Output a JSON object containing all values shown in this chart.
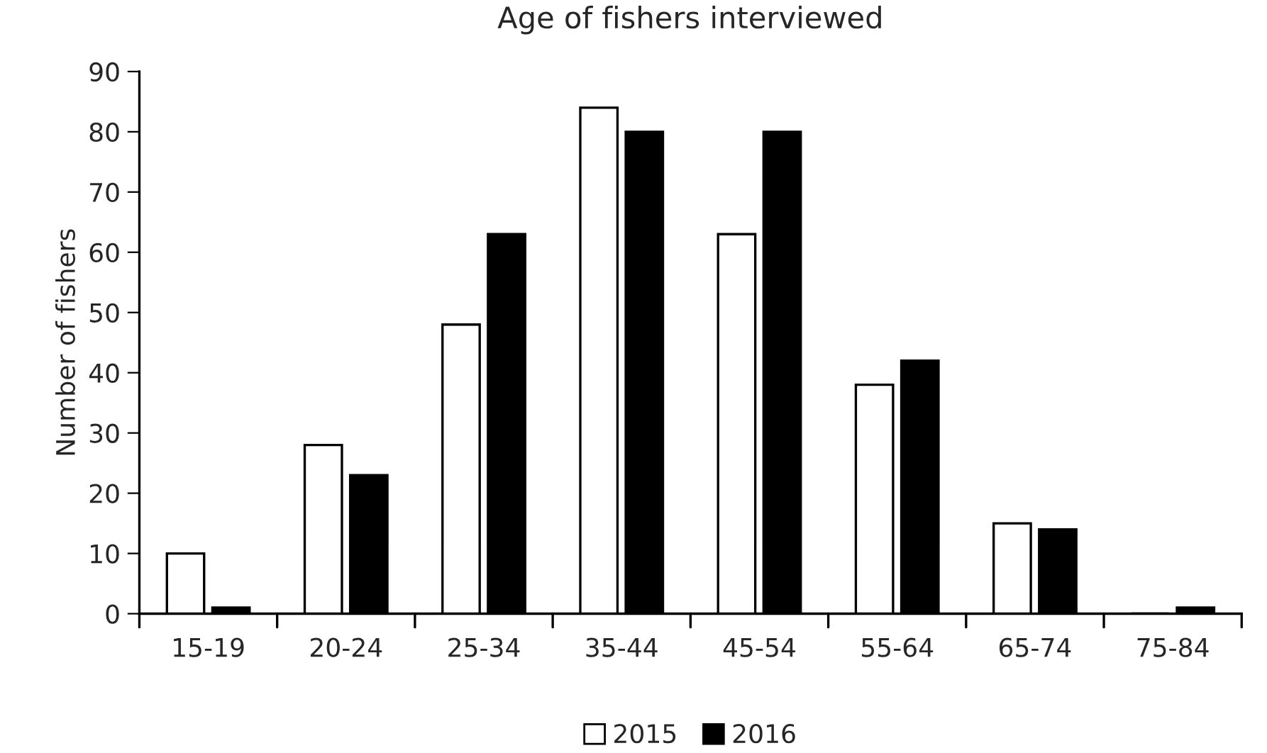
{
  "chart_data": {
    "type": "bar",
    "title": "Age of fishers interviewed",
    "ylabel": "Number of fishers",
    "categories": [
      "15-19",
      "20-24",
      "25-34",
      "35-44",
      "45-54",
      "55-64",
      "65-74",
      "75-84"
    ],
    "series": [
      {
        "name": "2015",
        "color": "#ffffff",
        "values": [
          10,
          28,
          48,
          84,
          63,
          38,
          15,
          0
        ]
      },
      {
        "name": "2016",
        "color": "#000000",
        "values": [
          1,
          23,
          63,
          80,
          80,
          42,
          14,
          1
        ]
      }
    ],
    "ylim": [
      0,
      90
    ],
    "yticks": [
      0,
      10,
      20,
      30,
      40,
      50,
      60,
      70,
      80,
      90
    ],
    "grid": false,
    "legend": "bottom"
  }
}
